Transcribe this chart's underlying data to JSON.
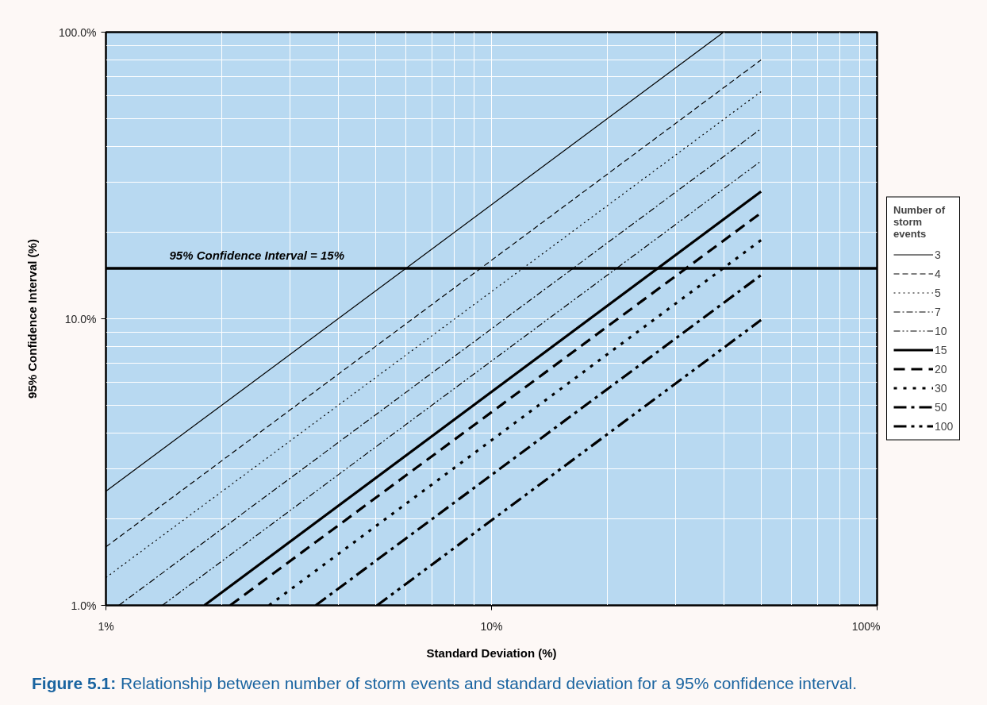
{
  "chart_data": {
    "type": "line",
    "xlabel": "Standard Deviation (%)",
    "ylabel": "95% Confidence Interval (%)",
    "legend_title": "Number of storm events",
    "log": "xy",
    "xlim": [
      1,
      100
    ],
    "ylim": [
      1,
      100
    ],
    "xticks": [
      {
        "value": 1,
        "label": "1%"
      },
      {
        "value": 10,
        "label": "10%"
      },
      {
        "value": 100,
        "label": "100%"
      }
    ],
    "yticks": [
      {
        "value": 1,
        "label": "1.0%"
      },
      {
        "value": 10,
        "label": "10.0%"
      },
      {
        "value": 100,
        "label": "100.0%"
      }
    ],
    "grid": true,
    "legend": "right",
    "series": [
      {
        "name": "3",
        "color": "#000000",
        "line_style": "solid",
        "x": [
          1,
          40
        ],
        "values": [
          2.5,
          100
        ]
      },
      {
        "name": "4",
        "color": "#000000",
        "line_style": "dashed",
        "x": [
          1,
          50
        ],
        "values": [
          1.6,
          80
        ]
      },
      {
        "name": "5",
        "color": "#000000",
        "line_style": "dotted",
        "x": [
          1,
          50
        ],
        "values": [
          1.25,
          62
        ]
      },
      {
        "name": "7",
        "color": "#000000",
        "line_style": "dashdot",
        "x": [
          1.08,
          50
        ],
        "values": [
          1,
          46
        ]
      },
      {
        "name": "10",
        "color": "#000000",
        "line_style": "dashdotdot",
        "x": [
          1.4,
          50
        ],
        "values": [
          1,
          35.5
        ]
      },
      {
        "name": "15",
        "color": "#000000",
        "line_style": "solid",
        "x": [
          1.8,
          50
        ],
        "values": [
          1,
          27.8
        ]
      },
      {
        "name": "20",
        "color": "#000000",
        "line_style": "dashed",
        "x": [
          2.1,
          50
        ],
        "values": [
          1,
          23.4
        ]
      },
      {
        "name": "30",
        "color": "#000000",
        "line_style": "dotted",
        "x": [
          2.65,
          50
        ],
        "values": [
          1,
          18.8
        ]
      },
      {
        "name": "50",
        "color": "#000000",
        "line_style": "dashdot",
        "x": [
          3.5,
          50
        ],
        "values": [
          1,
          14.2
        ]
      },
      {
        "name": "100",
        "color": "#000000",
        "line_style": "dashdotdot",
        "x": [
          5.05,
          50
        ],
        "values": [
          1,
          9.9
        ]
      }
    ],
    "ref_lines": [
      {
        "axis": "y",
        "value": 15,
        "label": "95% Confidence Interval = 15%",
        "color": "#000000"
      }
    ],
    "annotations": [
      "Figure 5.1: Relationship between number of storm events and standard deviation for a 95% confidence interval."
    ]
  }
}
